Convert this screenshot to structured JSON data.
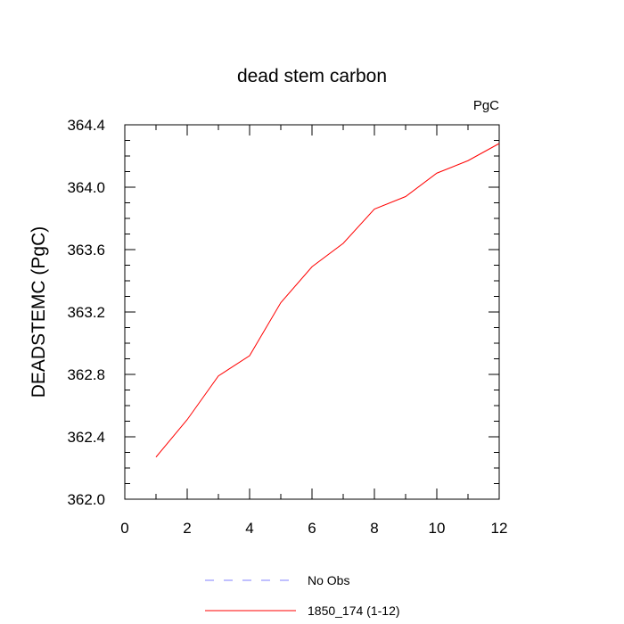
{
  "chart_data": {
    "type": "line",
    "title": "dead stem carbon",
    "units_label": "PgC",
    "xlabel": "",
    "ylabel": "DEADSTEMC  (PgC)",
    "xlim": [
      0,
      12
    ],
    "ylim": [
      362.0,
      364.4
    ],
    "x_ticks": [
      0,
      2,
      4,
      6,
      8,
      10,
      12
    ],
    "y_ticks": [
      362.0,
      362.4,
      362.8,
      363.2,
      363.6,
      364.0,
      364.4
    ],
    "x_tick_labels": [
      "0",
      "2",
      "4",
      "6",
      "8",
      "10",
      "12"
    ],
    "y_tick_labels": [
      "362.0",
      "362.4",
      "362.8",
      "363.2",
      "363.6",
      "364.0",
      "364.4"
    ],
    "grid": false,
    "legend_position": "bottom",
    "series": [
      {
        "name": "No Obs",
        "color": "#8080ff",
        "dash": "dashed",
        "x": [],
        "y": []
      },
      {
        "name": "1850_174 (1-12)",
        "color": "#ff0000",
        "dash": "solid",
        "x": [
          1,
          2,
          3,
          4,
          5,
          6,
          7,
          8,
          9,
          10,
          11,
          12
        ],
        "y": [
          362.27,
          362.51,
          362.79,
          362.92,
          363.26,
          363.49,
          363.64,
          363.86,
          363.94,
          364.09,
          364.17,
          364.28
        ]
      }
    ]
  }
}
